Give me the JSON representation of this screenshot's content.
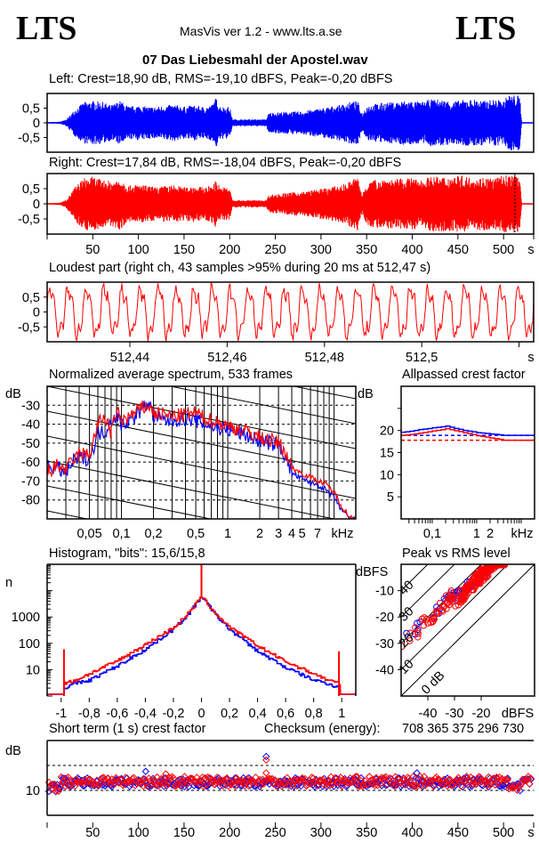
{
  "header": {
    "logo_left": "LTS",
    "logo_right": "LTS",
    "app_title": "MasVis ver 1.2 - www.lts.a.se",
    "file_name": "07 Das Liebesmahl der Apostel.wav"
  },
  "colors": {
    "left": "#0000ff",
    "right": "#ff0000",
    "frame": "#000000"
  },
  "chart_data": [
    {
      "id": "waveform-left",
      "type": "line",
      "title": "Left: Crest=18,90 dB, RMS=-19,10 dBFS, Peak=-0,20 dBFS",
      "ylabel": "",
      "xlabel": "s",
      "ylim": [
        -1,
        1
      ],
      "xlim": [
        0,
        533
      ],
      "yticks": [
        "0,5",
        "0",
        "-0,5"
      ],
      "series": [
        {
          "name": "Left",
          "color": "#0000ff",
          "envelope_s": [
            0,
            10,
            15,
            20,
            25,
            30,
            40,
            50,
            60,
            70,
            80,
            90,
            100,
            110,
            120,
            130,
            140,
            150,
            160,
            170,
            180,
            185,
            190,
            200,
            203,
            210,
            220,
            230,
            240,
            243,
            250,
            260,
            270,
            280,
            290,
            300,
            310,
            320,
            330,
            340,
            345,
            350,
            360,
            370,
            380,
            390,
            400,
            410,
            420,
            430,
            440,
            450,
            460,
            470,
            480,
            490,
            500,
            505,
            510,
            515,
            518,
            520,
            533
          ],
          "envelope_amp": [
            0.02,
            0.03,
            0.05,
            0.1,
            0.25,
            0.45,
            0.7,
            0.75,
            0.72,
            0.6,
            0.75,
            0.55,
            0.6,
            0.55,
            0.55,
            0.6,
            0.62,
            0.55,
            0.6,
            0.55,
            0.6,
            0.85,
            0.55,
            0.55,
            0.12,
            0.12,
            0.12,
            0.12,
            0.12,
            0.35,
            0.35,
            0.38,
            0.38,
            0.4,
            0.45,
            0.5,
            0.55,
            0.6,
            0.7,
            0.75,
            0.3,
            0.6,
            0.65,
            0.7,
            0.7,
            0.75,
            0.75,
            0.7,
            0.8,
            0.8,
            0.75,
            0.75,
            0.8,
            0.8,
            0.75,
            0.8,
            0.75,
            0.95,
            0.95,
            0.95,
            0.9,
            0.02,
            0.02
          ]
        }
      ]
    },
    {
      "id": "waveform-right",
      "type": "line",
      "title": "Right: Crest=17,84 dB, RMS=-18,04 dBFS, Peak=-0,20 dBFS",
      "ylabel": "",
      "xlabel": "s",
      "ylim": [
        -1,
        1
      ],
      "xlim": [
        0,
        533
      ],
      "yticks": [
        "0,5",
        "0",
        "-0,5"
      ],
      "xticks": [
        50,
        100,
        150,
        200,
        250,
        300,
        350,
        400,
        450,
        500
      ],
      "xtick_labels": [
        "50",
        "100",
        "150",
        "200",
        "250",
        "300",
        "350",
        "400",
        "450",
        "500"
      ],
      "marker_s": 512.47,
      "series": [
        {
          "name": "Right",
          "color": "#ff0000",
          "envelope_s": [
            0,
            10,
            15,
            20,
            25,
            30,
            40,
            50,
            60,
            70,
            80,
            90,
            100,
            110,
            120,
            130,
            140,
            150,
            160,
            170,
            180,
            185,
            190,
            200,
            203,
            210,
            220,
            230,
            240,
            243,
            250,
            260,
            270,
            280,
            290,
            300,
            310,
            320,
            330,
            340,
            345,
            350,
            360,
            370,
            380,
            390,
            400,
            410,
            420,
            430,
            440,
            450,
            460,
            470,
            480,
            490,
            500,
            505,
            510,
            515,
            518,
            520,
            533
          ],
          "envelope_amp": [
            0.02,
            0.03,
            0.05,
            0.12,
            0.3,
            0.55,
            0.85,
            0.9,
            0.8,
            0.75,
            0.85,
            0.6,
            0.65,
            0.6,
            0.55,
            0.6,
            0.62,
            0.55,
            0.6,
            0.55,
            0.6,
            0.8,
            0.55,
            0.55,
            0.12,
            0.12,
            0.12,
            0.12,
            0.12,
            0.3,
            0.32,
            0.35,
            0.38,
            0.4,
            0.45,
            0.5,
            0.55,
            0.6,
            0.72,
            0.9,
            0.3,
            0.7,
            0.8,
            0.85,
            0.8,
            0.85,
            0.85,
            0.8,
            0.9,
            0.9,
            0.9,
            0.95,
            0.9,
            0.85,
            0.9,
            0.85,
            0.95,
            0.95,
            0.95,
            0.95,
            0.9,
            0.02,
            0.02
          ]
        }
      ]
    },
    {
      "id": "loudest-part",
      "type": "line",
      "title": "Loudest part (right ch, 43 samples >95% during 20 ms at 512,47 s)",
      "xlabel": "s",
      "ylim": [
        -1,
        1
      ],
      "xlim": [
        512.423,
        512.523
      ],
      "yticks": [
        "0,5",
        "0",
        "-0,5"
      ],
      "xticks": [
        512.44,
        512.46,
        512.48,
        512.5,
        512.52
      ],
      "xtick_labels": [
        "512,44",
        "512,46",
        "512,48",
        "512,5",
        ""
      ],
      "series": [
        {
          "name": "Right",
          "color": "#ff0000",
          "cycles": 27,
          "amplitude": 0.75
        }
      ]
    },
    {
      "id": "spectrum",
      "type": "line",
      "title": "Normalized average spectrum, 533 frames",
      "ylabel": "dB",
      "xlabel": "kHz",
      "ylim": [
        -90,
        -20
      ],
      "xlim_khz": [
        0.02,
        16
      ],
      "yticks": [
        -30,
        -40,
        -50,
        -60,
        -70,
        -80
      ],
      "ytick_labels": [
        "-30",
        "-40",
        "-50",
        "-60",
        "-70",
        "-80"
      ],
      "xticks_khz": [
        0.05,
        0.1,
        0.2,
        0.5,
        1,
        2,
        3,
        4,
        5,
        7
      ],
      "xtick_labels": [
        "0,05",
        "0,1",
        "0,2",
        "0,5",
        "1",
        "2",
        "3",
        "4",
        "5",
        "7"
      ],
      "grid": true,
      "series": [
        {
          "name": "Left",
          "color": "#0000ff",
          "f_khz": [
            0.02,
            0.025,
            0.03,
            0.035,
            0.04,
            0.05,
            0.06,
            0.07,
            0.08,
            0.09,
            0.1,
            0.12,
            0.15,
            0.18,
            0.2,
            0.25,
            0.3,
            0.4,
            0.5,
            0.6,
            0.8,
            1,
            1.5,
            2,
            3,
            3.5,
            4,
            5,
            6,
            7,
            8,
            10,
            12,
            14,
            16
          ],
          "db": [
            -62,
            -63,
            -66,
            -60,
            -58,
            -58,
            -45,
            -44,
            -38,
            -35,
            -40,
            -38,
            -33,
            -28,
            -36,
            -38,
            -38,
            -37,
            -38,
            -40,
            -42,
            -43,
            -46,
            -49,
            -51,
            -57,
            -66,
            -69,
            -71,
            -72,
            -74,
            -79,
            -86,
            -90,
            -90
          ]
        },
        {
          "name": "Right",
          "color": "#ff0000",
          "f_khz": [
            0.02,
            0.025,
            0.03,
            0.035,
            0.04,
            0.05,
            0.06,
            0.07,
            0.08,
            0.09,
            0.1,
            0.12,
            0.15,
            0.18,
            0.2,
            0.25,
            0.3,
            0.4,
            0.5,
            0.6,
            0.8,
            1,
            1.5,
            2,
            3,
            3.5,
            4,
            5,
            6,
            7,
            8,
            10,
            12,
            14,
            16
          ],
          "db": [
            -65,
            -62,
            -64,
            -59,
            -56,
            -56,
            -40,
            -36,
            -45,
            -33,
            -38,
            -36,
            -32,
            -30,
            -34,
            -35,
            -36,
            -35,
            -34,
            -37,
            -39,
            -41,
            -44,
            -47,
            -50,
            -55,
            -63,
            -66,
            -68,
            -70,
            -71,
            -76,
            -84,
            -89,
            -90
          ]
        }
      ]
    },
    {
      "id": "allpassed-crest",
      "type": "line",
      "title": "Allpassed crest factor",
      "ylabel": "dB",
      "xlabel": "kHz",
      "ylim": [
        0,
        30
      ],
      "xlim_khz": [
        0.02,
        20
      ],
      "yticks": [
        20,
        15,
        10,
        5
      ],
      "ytick_labels": [
        "20",
        "15",
        "10",
        "5"
      ],
      "xtick_labels": [
        "0,1",
        "1",
        "2"
      ],
      "xticks_khz": [
        0.1,
        1,
        2
      ],
      "series": [
        {
          "name": "Left",
          "color": "#0000ff",
          "f_khz": [
            0.02,
            0.05,
            0.1,
            0.2,
            0.3,
            0.5,
            1,
            2,
            4,
            20
          ],
          "db": [
            19.6,
            20.2,
            20.6,
            21.0,
            20.5,
            20.0,
            19.5,
            19.2,
            18.9,
            18.9
          ],
          "reference_db": 18.9
        },
        {
          "name": "Right",
          "color": "#ff0000",
          "f_khz": [
            0.02,
            0.05,
            0.1,
            0.2,
            0.3,
            0.5,
            1,
            2,
            4,
            20
          ],
          "db": [
            18.9,
            19.4,
            19.9,
            20.4,
            20.0,
            19.5,
            18.8,
            18.3,
            17.8,
            17.8
          ],
          "reference_db": 17.8
        }
      ]
    },
    {
      "id": "histogram",
      "type": "line",
      "title": "Histogram, \"bits\": 15,6/15,8",
      "ylabel": "n",
      "xlabel": "",
      "ylim_log": [
        1,
        100000
      ],
      "xlim": [
        -1.1,
        1.1
      ],
      "yticks": [
        10,
        100,
        1000
      ],
      "ytick_labels": [
        "10",
        "100",
        "1000"
      ],
      "xticks": [
        -1,
        -0.8,
        -0.6,
        -0.4,
        -0.2,
        0,
        0.2,
        0.4,
        0.6,
        0.8,
        1
      ],
      "xtick_labels": [
        "-1",
        "-0,8",
        "-0,6",
        "-0,4",
        "-0,2",
        "0",
        "0,2",
        "0,4",
        "0,6",
        "0,8",
        "1"
      ],
      "series": [
        {
          "name": "Left",
          "color": "#0000ff",
          "x": [
            -0.98,
            -0.9,
            -0.8,
            -0.6,
            -0.4,
            -0.2,
            -0.1,
            0,
            0.1,
            0.2,
            0.4,
            0.6,
            0.8,
            0.9,
            0.98
          ],
          "n": [
            2,
            3,
            4,
            14,
            60,
            350,
            1200,
            6000,
            1200,
            330,
            50,
            12,
            4,
            3,
            2
          ]
        },
        {
          "name": "Right",
          "color": "#ff0000",
          "x": [
            -0.98,
            -0.9,
            -0.8,
            -0.6,
            -0.4,
            -0.2,
            -0.1,
            0,
            0.1,
            0.2,
            0.4,
            0.6,
            0.8,
            0.9,
            0.98
          ],
          "n": [
            3,
            4,
            7,
            22,
            90,
            400,
            1300,
            6000,
            1300,
            400,
            80,
            20,
            7,
            4,
            3
          ],
          "spike_edges_n": [
            60,
            50
          ]
        }
      ]
    },
    {
      "id": "peak-vs-rms",
      "type": "scatter",
      "title": "Peak vs RMS level",
      "ylabel": "dBFS",
      "xlabel": "dBFS",
      "xlim": [
        -50,
        0
      ],
      "ylim": [
        -50,
        0
      ],
      "xticks": [
        -40,
        -30,
        -20
      ],
      "xtick_labels": [
        "-40",
        "-30",
        "-20"
      ],
      "yticks": [
        -10,
        -20,
        -30,
        -40
      ],
      "ytick_labels": [
        "-10",
        "-20",
        "-30",
        "-40"
      ],
      "diagonal_labels": [
        "40",
        "30",
        "20",
        "10",
        "0 dB"
      ],
      "series": [
        {
          "name": "Left",
          "color": "#0000ff",
          "rms_range": [
            -50,
            -12
          ],
          "crest_range": [
            14,
            22
          ]
        },
        {
          "name": "Right",
          "color": "#ff0000",
          "rms_range": [
            -50,
            -11
          ],
          "crest_range": [
            13,
            22
          ]
        }
      ]
    },
    {
      "id": "short-term-crest",
      "type": "scatter",
      "title": "Short term (1 s) crest factor",
      "checksum_label": "Checksum (energy):",
      "checksum_value": "708 365 375 296 730",
      "ylabel": "dB",
      "xlabel": "s",
      "ylim": [
        5,
        20
      ],
      "xlim": [
        0,
        533
      ],
      "yticks": [
        10
      ],
      "ytick_labels": [
        "10"
      ],
      "dashed_lines_db": [
        10,
        15
      ],
      "xticks": [
        50,
        100,
        150,
        200,
        250,
        300,
        350,
        400,
        450,
        500
      ],
      "xtick_labels": [
        "50",
        "100",
        "150",
        "200",
        "250",
        "300",
        "350",
        "400",
        "450",
        "500"
      ],
      "series": [
        {
          "name": "Left",
          "color": "#0000ff",
          "mean_db": 11.6,
          "spread_db": 0.9,
          "outliers": [
            [
              240,
              16.8
            ],
            [
              108,
              13.8
            ],
            [
              405,
              13.5
            ]
          ]
        },
        {
          "name": "Right",
          "color": "#ff0000",
          "mean_db": 11.8,
          "spread_db": 1.0,
          "outliers": [
            [
              240,
              16.1
            ],
            [
              240,
              13.5
            ],
            [
              130,
              13.3
            ]
          ]
        }
      ]
    }
  ],
  "axis_unit_labels": {
    "seconds": "s",
    "khz": "kHz",
    "dbfs": "dBFS"
  }
}
